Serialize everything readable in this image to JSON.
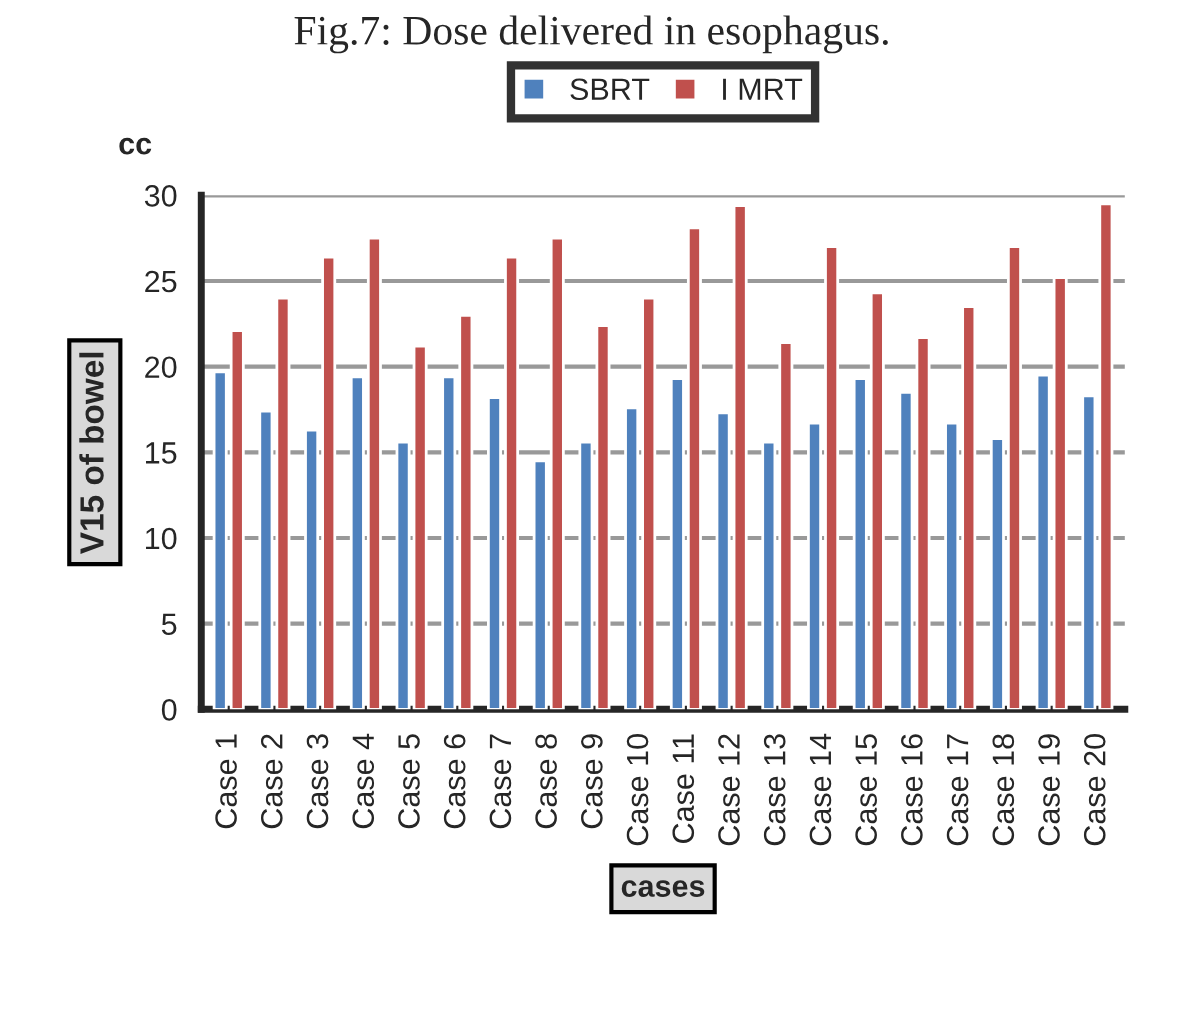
{
  "chart_data": {
    "type": "bar",
    "title": "Fig.7: Dose delivered in esophagus.",
    "xlabel": "cases",
    "ylabel": "V15 of bowel",
    "annotations": [
      "cc"
    ],
    "categories": [
      "Case 1",
      "Case 2",
      "Case 3",
      "Case 4",
      "Case 5",
      "Case 6",
      "Case 7",
      "Case 8",
      "Case 9",
      "Case 10",
      "Case 11",
      "Case 12",
      "Case 13",
      "Case 14",
      "Case 15",
      "Case 16",
      "Case 17",
      "Case 18",
      "Case 19",
      "Case 20"
    ],
    "series": [
      {
        "name": "SBRT",
        "color": "#4f81bd",
        "values": [
          19.7,
          17.4,
          16.3,
          19.4,
          15.6,
          19.4,
          18.2,
          14.5,
          15.6,
          17.6,
          19.3,
          17.3,
          15.6,
          16.7,
          19.3,
          18.5,
          16.7,
          15.8,
          19.5,
          18.3
        ]
      },
      {
        "name": "I MRT",
        "color": "#c0504d",
        "values": [
          22.1,
          24.0,
          26.4,
          27.5,
          21.2,
          23.0,
          26.4,
          27.5,
          22.4,
          24.0,
          28.1,
          29.4,
          21.4,
          27.0,
          24.3,
          21.7,
          23.5,
          27.0,
          25.2,
          29.5
        ]
      }
    ],
    "ylim": [
      0,
      30
    ],
    "yticks": [
      0,
      5,
      10,
      15,
      20,
      25,
      30
    ],
    "grid": "y",
    "legend": "top"
  }
}
